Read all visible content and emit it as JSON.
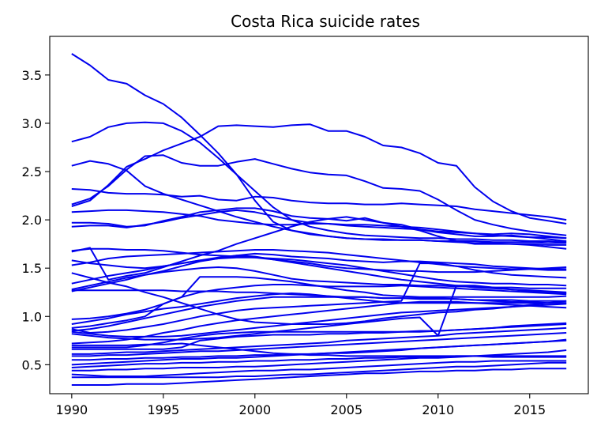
{
  "chart_data": {
    "type": "line",
    "title": "Costa Rica suicide rates",
    "xlabel": "",
    "ylabel": "",
    "color": "#0000ee",
    "xlim": [
      1988.8,
      2018.2
    ],
    "ylim": [
      0.2,
      3.9
    ],
    "xticks": [
      1990,
      1995,
      2000,
      2005,
      2010,
      2015
    ],
    "yticks": [
      0.5,
      1.0,
      1.5,
      2.0,
      2.5,
      3.0,
      3.5
    ],
    "ytick_labels": [
      "0.5",
      "1.0",
      "1.5",
      "2.0",
      "2.5",
      "3.0",
      "3.5"
    ],
    "grid": false,
    "legend": "none",
    "x": [
      1990,
      1991,
      1992,
      1993,
      1994,
      1995,
      1996,
      1997,
      1998,
      1999,
      2000,
      2001,
      2002,
      2003,
      2004,
      2005,
      2006,
      2007,
      2008,
      2009,
      2010,
      2011,
      2012,
      2013,
      2014,
      2015,
      2016,
      2017
    ],
    "series": [
      {
        "values": [
          3.72,
          3.6,
          3.45,
          3.41,
          3.29,
          3.2,
          3.06,
          2.88,
          2.69,
          2.47,
          2.2,
          1.98,
          1.89,
          1.86,
          1.83,
          1.81,
          1.8,
          1.8,
          1.79,
          1.79,
          1.78,
          1.77,
          1.76,
          1.76,
          1.75,
          1.75,
          1.74,
          1.74
        ]
      },
      {
        "values": [
          2.81,
          2.86,
          2.96,
          3.0,
          3.01,
          3.0,
          2.92,
          2.8,
          2.64,
          2.47,
          2.3,
          2.13,
          2.0,
          1.93,
          1.89,
          1.86,
          1.84,
          1.83,
          1.82,
          1.81,
          1.81,
          1.8,
          1.8,
          1.79,
          1.79,
          1.78,
          1.78,
          1.77
        ]
      },
      {
        "values": [
          2.56,
          2.61,
          2.58,
          2.51,
          2.35,
          2.27,
          2.21,
          2.15,
          2.09,
          2.03,
          1.98,
          1.93,
          1.89,
          1.85,
          1.83,
          1.81,
          1.8,
          1.79,
          1.79,
          1.79,
          1.78,
          1.78,
          1.78,
          1.77,
          1.77,
          1.77,
          1.76,
          1.76
        ]
      },
      {
        "values": [
          2.16,
          2.22,
          2.35,
          2.52,
          2.66,
          2.67,
          2.59,
          2.56,
          2.56,
          2.6,
          2.63,
          2.58,
          2.53,
          2.49,
          2.47,
          2.46,
          2.4,
          2.33,
          2.32,
          2.3,
          2.21,
          2.1,
          2.0,
          1.95,
          1.91,
          1.88,
          1.86,
          1.84
        ]
      },
      {
        "values": [
          2.14,
          2.2,
          2.36,
          2.55,
          2.63,
          2.72,
          2.79,
          2.86,
          2.97,
          2.98,
          2.97,
          2.96,
          2.98,
          2.99,
          2.92,
          2.92,
          2.86,
          2.77,
          2.75,
          2.69,
          2.59,
          2.56,
          2.34,
          2.19,
          2.09,
          2.02,
          1.99,
          1.96
        ]
      },
      {
        "values": [
          2.32,
          2.31,
          2.28,
          2.27,
          2.27,
          2.26,
          2.24,
          2.25,
          2.21,
          2.2,
          2.24,
          2.23,
          2.2,
          2.18,
          2.17,
          2.17,
          2.16,
          2.16,
          2.17,
          2.16,
          2.15,
          2.14,
          2.11,
          2.09,
          2.07,
          2.05,
          2.03,
          2.0
        ]
      },
      {
        "values": [
          2.08,
          2.09,
          2.1,
          2.1,
          2.09,
          2.08,
          2.06,
          2.04,
          2.0,
          1.98,
          1.96,
          1.95,
          1.95,
          1.96,
          1.96,
          1.95,
          1.95,
          1.94,
          1.93,
          1.92,
          1.9,
          1.88,
          1.86,
          1.84,
          1.83,
          1.82,
          1.82,
          1.81
        ]
      },
      {
        "values": [
          1.97,
          1.97,
          1.96,
          1.93,
          1.94,
          1.99,
          2.03,
          2.08,
          2.1,
          2.12,
          2.12,
          2.09,
          2.04,
          2.02,
          2.01,
          1.99,
          2.02,
          1.97,
          1.95,
          1.9,
          1.87,
          1.85,
          1.83,
          1.83,
          1.84,
          1.82,
          1.8,
          1.78
        ]
      },
      {
        "values": [
          1.93,
          1.94,
          1.94,
          1.92,
          1.95,
          1.98,
          2.02,
          2.05,
          2.08,
          2.1,
          2.08,
          2.04,
          2.0,
          1.97,
          1.96,
          1.94,
          1.93,
          1.92,
          1.91,
          1.9,
          1.88,
          1.87,
          1.86,
          1.85,
          1.86,
          1.85,
          1.83,
          1.81
        ]
      },
      {
        "values": [
          1.68,
          1.7,
          1.7,
          1.69,
          1.69,
          1.68,
          1.66,
          1.64,
          1.63,
          1.62,
          1.61,
          1.59,
          1.57,
          1.55,
          1.52,
          1.5,
          1.49,
          1.48,
          1.47,
          1.47,
          1.46,
          1.46,
          1.46,
          1.47,
          1.48,
          1.49,
          1.5,
          1.51
        ]
      },
      {
        "values": [
          1.67,
          1.71,
          1.38,
          1.42,
          1.45,
          1.51,
          1.57,
          1.63,
          1.68,
          1.75,
          1.81,
          1.87,
          1.93,
          1.98,
          2.01,
          2.03,
          2.0,
          1.97,
          1.93,
          1.89,
          1.83,
          1.78,
          1.75,
          1.75,
          1.75,
          1.74,
          1.72,
          1.7
        ]
      },
      {
        "values": [
          1.53,
          1.56,
          1.6,
          1.62,
          1.63,
          1.64,
          1.65,
          1.66,
          1.67,
          1.68,
          1.69,
          1.69,
          1.68,
          1.67,
          1.66,
          1.64,
          1.62,
          1.6,
          1.58,
          1.56,
          1.54,
          1.52,
          1.51,
          1.5,
          1.49,
          1.49,
          1.48,
          1.48
        ]
      },
      {
        "values": [
          1.58,
          1.55,
          1.53,
          1.51,
          1.5,
          1.52,
          1.55,
          1.58,
          1.61,
          1.63,
          1.65,
          1.64,
          1.62,
          1.61,
          1.6,
          1.58,
          1.57,
          1.56,
          1.57,
          1.57,
          1.56,
          1.55,
          1.54,
          1.52,
          1.51,
          1.5,
          1.49,
          1.49
        ]
      },
      {
        "values": [
          1.45,
          1.4,
          1.35,
          1.31,
          1.25,
          1.2,
          1.14,
          1.08,
          1.02,
          0.97,
          0.94,
          0.93,
          0.92,
          0.92,
          0.92,
          0.93,
          0.95,
          0.98,
          1.0,
          1.02,
          1.04,
          1.05,
          1.07,
          1.08,
          1.1,
          1.12,
          1.14,
          1.16
        ]
      },
      {
        "values": [
          1.34,
          1.38,
          1.42,
          1.45,
          1.48,
          1.52,
          1.55,
          1.58,
          1.6,
          1.61,
          1.61,
          1.6,
          1.59,
          1.57,
          1.55,
          1.53,
          1.5,
          1.47,
          1.44,
          1.41,
          1.38,
          1.36,
          1.35,
          1.34,
          1.34,
          1.33,
          1.33,
          1.32
        ]
      },
      {
        "values": [
          1.28,
          1.32,
          1.36,
          1.4,
          1.43,
          1.46,
          1.48,
          1.5,
          1.51,
          1.5,
          1.47,
          1.43,
          1.39,
          1.37,
          1.36,
          1.35,
          1.34,
          1.33,
          1.33,
          1.32,
          1.32,
          1.31,
          1.31,
          1.3,
          1.3,
          1.29,
          1.29,
          1.29
        ]
      },
      {
        "values": [
          1.26,
          1.3,
          1.34,
          1.38,
          1.43,
          1.47,
          1.52,
          1.57,
          1.6,
          1.63,
          1.62,
          1.59,
          1.56,
          1.53,
          1.5,
          1.47,
          1.44,
          1.41,
          1.38,
          1.36,
          1.34,
          1.32,
          1.3,
          1.29,
          1.28,
          1.27,
          1.26,
          1.25
        ]
      },
      {
        "values": [
          1.27,
          1.27,
          1.27,
          1.27,
          1.27,
          1.27,
          1.26,
          1.26,
          1.26,
          1.25,
          1.25,
          1.24,
          1.23,
          1.22,
          1.21,
          1.2,
          1.2,
          1.19,
          1.19,
          1.18,
          1.18,
          1.18,
          1.17,
          1.17,
          1.17,
          1.16,
          1.16,
          1.16
        ]
      },
      {
        "values": [
          0.97,
          0.98,
          1.0,
          1.03,
          1.07,
          1.13,
          1.2,
          1.25,
          1.28,
          1.3,
          1.32,
          1.33,
          1.33,
          1.32,
          1.31,
          1.31,
          1.31,
          1.31,
          1.32,
          1.31,
          1.3,
          1.29,
          1.28,
          1.27,
          1.26,
          1.25,
          1.24,
          1.23
        ]
      },
      {
        "values": [
          0.92,
          0.95,
          0.98,
          1.02,
          1.05,
          1.08,
          1.1,
          1.13,
          1.16,
          1.19,
          1.21,
          1.23,
          1.24,
          1.23,
          1.21,
          1.19,
          1.17,
          1.15,
          1.14,
          1.14,
          1.14,
          1.14,
          1.14,
          1.14,
          1.14,
          1.14,
          1.14,
          1.14
        ]
      },
      {
        "values": [
          0.88,
          0.9,
          0.93,
          0.96,
          1.0,
          1.13,
          1.2,
          1.41,
          1.41,
          1.41,
          1.4,
          1.38,
          1.36,
          1.33,
          1.3,
          1.27,
          1.25,
          1.22,
          1.21,
          1.2,
          1.2,
          1.2,
          1.2,
          1.2,
          1.2,
          1.2,
          1.2,
          1.21
        ]
      },
      {
        "values": [
          0.85,
          0.87,
          0.9,
          0.94,
          0.98,
          1.02,
          1.06,
          1.1,
          1.13,
          1.16,
          1.18,
          1.2,
          1.2,
          1.2,
          1.2,
          1.2,
          1.2,
          1.19,
          1.19,
          1.19,
          1.19,
          1.18,
          1.17,
          1.16,
          1.15,
          1.15,
          1.14,
          1.14
        ]
      },
      {
        "values": [
          0.87,
          0.83,
          0.84,
          0.86,
          0.89,
          0.92,
          0.96,
          1.0,
          1.03,
          1.06,
          1.08,
          1.09,
          1.1,
          1.11,
          1.12,
          1.13,
          1.14,
          1.15,
          1.16,
          1.55,
          1.55,
          1.52,
          1.48,
          1.45,
          1.43,
          1.42,
          1.41,
          1.4
        ]
      },
      {
        "values": [
          0.84,
          0.82,
          0.8,
          0.79,
          0.79,
          0.79,
          0.8,
          0.82,
          0.84,
          0.86,
          0.88,
          0.9,
          0.92,
          0.94,
          0.96,
          0.98,
          1.0,
          1.02,
          1.04,
          1.05,
          1.06,
          1.07,
          1.08,
          1.09,
          1.1,
          1.11,
          1.12,
          1.13
        ]
      },
      {
        "values": [
          0.82,
          0.8,
          0.78,
          0.77,
          0.76,
          0.76,
          0.76,
          0.77,
          0.78,
          0.8,
          0.82,
          0.84,
          0.86,
          0.88,
          0.9,
          0.92,
          0.94,
          0.96,
          0.98,
          0.99,
          0.8,
          1.32,
          1.32,
          1.3,
          1.28,
          1.26,
          1.25,
          1.24
        ]
      },
      {
        "values": [
          0.72,
          0.73,
          0.74,
          0.76,
          0.79,
          0.83,
          0.86,
          0.9,
          0.93,
          0.96,
          0.98,
          1.0,
          1.02,
          1.04,
          1.06,
          1.08,
          1.1,
          1.12,
          1.14,
          1.15,
          1.15,
          1.15,
          1.14,
          1.13,
          1.12,
          1.11,
          1.1,
          1.09
        ]
      },
      {
        "values": [
          0.7,
          0.7,
          0.7,
          0.7,
          0.71,
          0.71,
          0.72,
          0.7,
          0.68,
          0.66,
          0.64,
          0.62,
          0.61,
          0.6,
          0.6,
          0.59,
          0.59,
          0.59,
          0.59,
          0.59,
          0.59,
          0.59,
          0.59,
          0.58,
          0.58,
          0.58,
          0.58,
          0.58
        ]
      },
      {
        "values": [
          0.68,
          0.68,
          0.68,
          0.68,
          0.7,
          0.73,
          0.77,
          0.8,
          0.82,
          0.83,
          0.84,
          0.84,
          0.84,
          0.84,
          0.84,
          0.84,
          0.84,
          0.84,
          0.84,
          0.85,
          0.85,
          0.86,
          0.87,
          0.88,
          0.89,
          0.9,
          0.91,
          0.92
        ]
      },
      {
        "values": [
          0.66,
          0.66,
          0.66,
          0.66,
          0.66,
          0.66,
          0.68,
          0.75,
          0.77,
          0.79,
          0.8,
          0.81,
          0.81,
          0.81,
          0.82,
          0.82,
          0.83,
          0.83,
          0.84,
          0.84,
          0.85,
          0.86,
          0.87,
          0.88,
          0.9,
          0.91,
          0.92,
          0.93
        ]
      },
      {
        "values": [
          0.61,
          0.61,
          0.62,
          0.63,
          0.63,
          0.64,
          0.65,
          0.66,
          0.67,
          0.68,
          0.69,
          0.7,
          0.71,
          0.72,
          0.73,
          0.75,
          0.76,
          0.77,
          0.78,
          0.79,
          0.8,
          0.82,
          0.83,
          0.84,
          0.85,
          0.86,
          0.87,
          0.88
        ]
      },
      {
        "values": [
          0.59,
          0.59,
          0.6,
          0.6,
          0.61,
          0.62,
          0.63,
          0.64,
          0.64,
          0.65,
          0.66,
          0.67,
          0.68,
          0.69,
          0.7,
          0.71,
          0.72,
          0.73,
          0.74,
          0.75,
          0.76,
          0.77,
          0.78,
          0.79,
          0.8,
          0.81,
          0.82,
          0.83
        ]
      },
      {
        "values": [
          0.55,
          0.55,
          0.56,
          0.56,
          0.57,
          0.57,
          0.58,
          0.58,
          0.59,
          0.59,
          0.6,
          0.6,
          0.61,
          0.61,
          0.62,
          0.63,
          0.64,
          0.65,
          0.66,
          0.67,
          0.68,
          0.69,
          0.7,
          0.71,
          0.72,
          0.73,
          0.74,
          0.75
        ]
      },
      {
        "values": [
          0.5,
          0.51,
          0.52,
          0.53,
          0.54,
          0.55,
          0.56,
          0.56,
          0.57,
          0.57,
          0.58,
          0.59,
          0.6,
          0.61,
          0.62,
          0.62,
          0.63,
          0.64,
          0.65,
          0.67,
          0.68,
          0.69,
          0.7,
          0.71,
          0.72,
          0.73,
          0.74,
          0.76
        ]
      },
      {
        "values": [
          0.47,
          0.48,
          0.49,
          0.5,
          0.51,
          0.51,
          0.52,
          0.52,
          0.53,
          0.53,
          0.54,
          0.54,
          0.55,
          0.55,
          0.56,
          0.56,
          0.57,
          0.57,
          0.58,
          0.58,
          0.58,
          0.59,
          0.59,
          0.59,
          0.59,
          0.59,
          0.59,
          0.59
        ]
      },
      {
        "values": [
          0.44,
          0.44,
          0.45,
          0.45,
          0.46,
          0.46,
          0.47,
          0.47,
          0.47,
          0.48,
          0.48,
          0.49,
          0.5,
          0.51,
          0.52,
          0.53,
          0.54,
          0.55,
          0.56,
          0.57,
          0.57,
          0.58,
          0.59,
          0.6,
          0.61,
          0.62,
          0.63,
          0.65
        ]
      },
      {
        "values": [
          0.4,
          0.39,
          0.38,
          0.38,
          0.38,
          0.39,
          0.4,
          0.41,
          0.42,
          0.43,
          0.44,
          0.44,
          0.45,
          0.45,
          0.46,
          0.47,
          0.48,
          0.49,
          0.5,
          0.51,
          0.52,
          0.53,
          0.53,
          0.54,
          0.54,
          0.54,
          0.54,
          0.54
        ]
      },
      {
        "values": [
          0.37,
          0.37,
          0.37,
          0.37,
          0.37,
          0.37,
          0.37,
          0.37,
          0.37,
          0.38,
          0.38,
          0.39,
          0.4,
          0.4,
          0.41,
          0.42,
          0.43,
          0.44,
          0.45,
          0.46,
          0.47,
          0.48,
          0.48,
          0.49,
          0.5,
          0.51,
          0.52,
          0.52
        ]
      },
      {
        "values": [
          0.29,
          0.29,
          0.29,
          0.3,
          0.3,
          0.3,
          0.31,
          0.32,
          0.33,
          0.34,
          0.35,
          0.36,
          0.37,
          0.38,
          0.39,
          0.4,
          0.41,
          0.41,
          0.42,
          0.43,
          0.43,
          0.44,
          0.44,
          0.45,
          0.45,
          0.46,
          0.46,
          0.46
        ]
      }
    ]
  }
}
